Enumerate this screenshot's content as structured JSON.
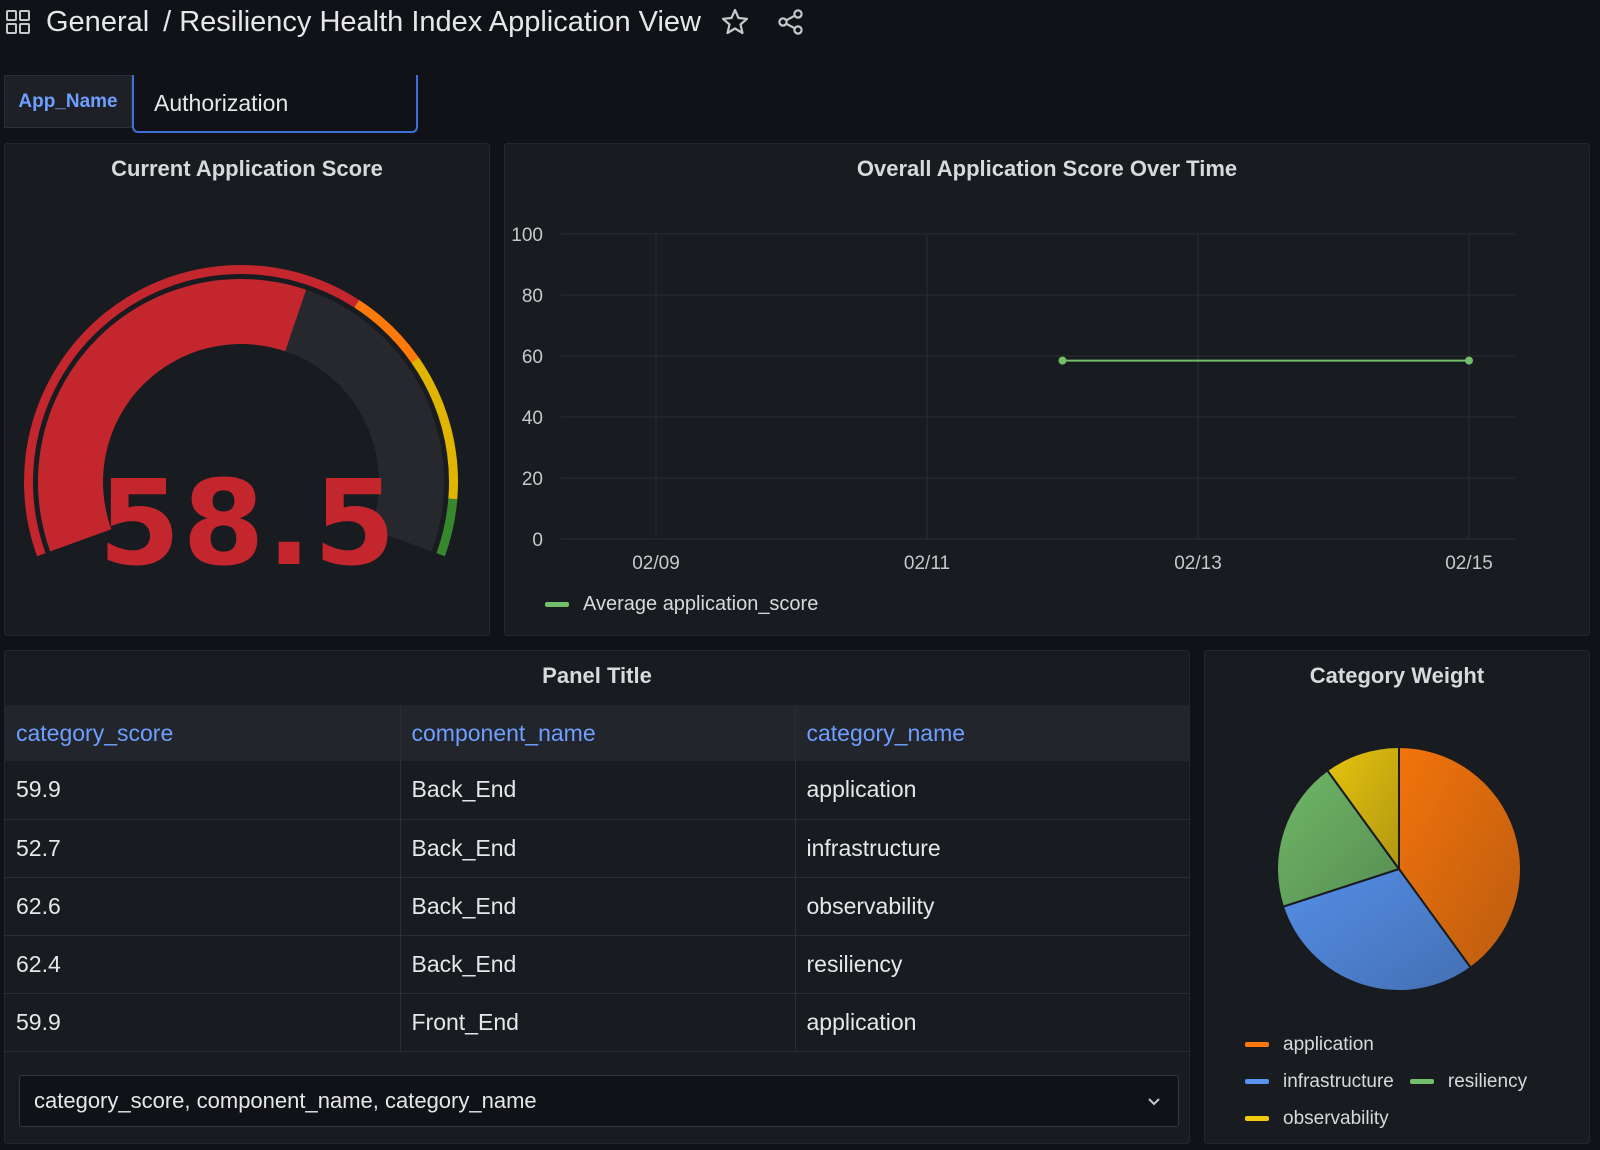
{
  "header": {
    "folder": "General",
    "separator": "/",
    "title": "Resiliency Health Index Application View",
    "icons": [
      "grid-icon",
      "star-icon",
      "share-icon"
    ]
  },
  "variable": {
    "label": "App_Name",
    "value": "Authorization"
  },
  "gauge_panel": {
    "title": "Current Application Score",
    "value": "58.5",
    "value_numeric": 58.5,
    "min": 0,
    "max": 100,
    "thresholds": [
      {
        "from": 0,
        "color": "#c4262e"
      },
      {
        "from": 65,
        "color": "#ff780a"
      },
      {
        "from": 75,
        "color": "#e0b400"
      },
      {
        "from": 93,
        "color": "#37872d"
      }
    ]
  },
  "ts_panel": {
    "title": "Overall Application Score Over Time",
    "legend": "Average application_score",
    "color": "#73bf69"
  },
  "chart_data": [
    {
      "type": "line",
      "title": "Overall Application Score Over Time",
      "x_ticks": [
        "02/09",
        "02/11",
        "02/13",
        "02/15"
      ],
      "y_ticks": [
        "0",
        "20",
        "40",
        "60",
        "80",
        "100"
      ],
      "ylim": [
        0,
        100
      ],
      "series": [
        {
          "name": "Average application_score",
          "x": [
            "02/12",
            "02/15"
          ],
          "y": [
            58.5,
            58.5
          ]
        }
      ],
      "legend_position": "bottom-left",
      "grid": true
    },
    {
      "type": "pie",
      "title": "Category Weight",
      "labels": [
        "application",
        "infrastructure",
        "resiliency",
        "observability"
      ],
      "values": [
        40,
        30,
        20,
        10
      ],
      "colors": [
        "#ff780a",
        "#5794f2",
        "#73bf69",
        "#f2cc0c"
      ],
      "legend_position": "bottom"
    }
  ],
  "table_panel": {
    "title": "Panel Title",
    "columns": [
      "category_score",
      "component_name",
      "category_name"
    ],
    "rows": [
      [
        "59.9",
        "Back_End",
        "application"
      ],
      [
        "52.7",
        "Back_End",
        "infrastructure"
      ],
      [
        "62.6",
        "Back_End",
        "observability"
      ],
      [
        "62.4",
        "Back_End",
        "resiliency"
      ],
      [
        "59.9",
        "Front_End",
        "application"
      ]
    ],
    "column_select": "category_score, component_name, category_name"
  },
  "pie_panel": {
    "title": "Category Weight",
    "legend": [
      {
        "label": "application",
        "color": "#ff780a"
      },
      {
        "label": "infrastructure",
        "color": "#5794f2"
      },
      {
        "label": "resiliency",
        "color": "#73bf69"
      },
      {
        "label": "observability",
        "color": "#f2cc0c"
      }
    ]
  }
}
